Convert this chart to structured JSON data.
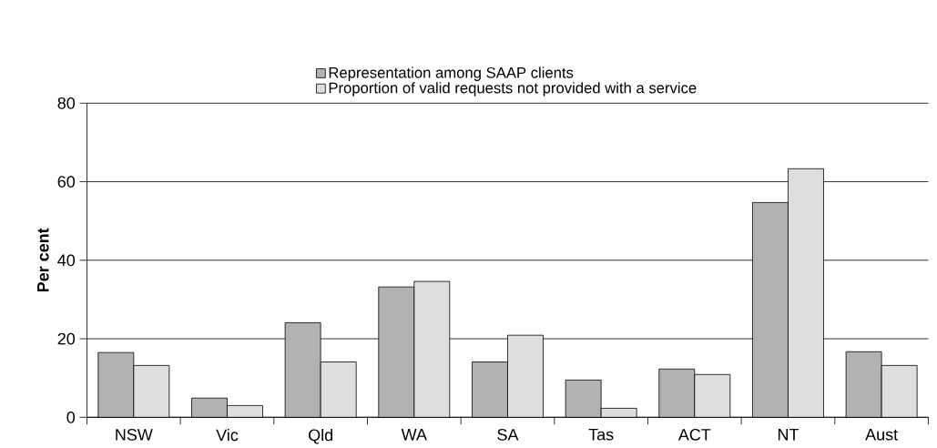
{
  "chart_data": {
    "type": "bar",
    "ylabel": "Per cent",
    "categories": [
      "NSW",
      "Vic",
      "Qld",
      "WA",
      "SA",
      "Tas",
      "ACT",
      "NT",
      "Aust"
    ],
    "series": [
      {
        "name": "Representation among SAAP clients",
        "color": "#b2b2b2",
        "values": [
          16.5,
          4.9,
          24.1,
          33.2,
          14.1,
          9.5,
          12.3,
          54.7,
          16.7
        ]
      },
      {
        "name": "Proportion of valid requests not provided with a service",
        "color": "#dedede",
        "values": [
          13.2,
          3.0,
          14.1,
          34.6,
          20.9,
          2.3,
          10.9,
          63.3,
          13.2
        ]
      }
    ],
    "ylim": [
      0,
      80
    ],
    "yticks": [
      0,
      20,
      40,
      60,
      80
    ],
    "grid": "y",
    "legend": "top"
  }
}
